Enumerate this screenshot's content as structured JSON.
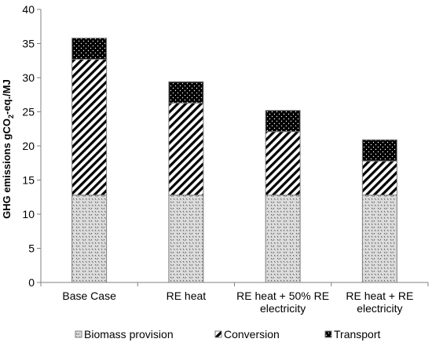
{
  "chart_data": {
    "type": "bar",
    "stacked": true,
    "categories": [
      [
        "Base Case"
      ],
      [
        "RE heat"
      ],
      [
        "RE heat + 50% RE",
        "electricity"
      ],
      [
        "RE heat +  RE",
        "electricity"
      ]
    ],
    "series": [
      {
        "name": "Biomass provision",
        "values": [
          12.8,
          12.8,
          12.8,
          12.8
        ],
        "pattern": "dots-light",
        "color": "#dcdcdc"
      },
      {
        "name": "Conversion",
        "values": [
          19.9,
          13.5,
          9.3,
          5.0
        ],
        "pattern": "diagonal-stripes",
        "color": "#000000"
      },
      {
        "name": "Transport",
        "values": [
          3.1,
          3.1,
          3.1,
          3.1
        ],
        "pattern": "dots-dark",
        "color": "#000000"
      }
    ],
    "ylabel": {
      "prefix": "GHG emissions gCO",
      "sub": "2",
      "suffix": "-eq./MJ"
    },
    "xlabel": "",
    "title": "",
    "ylim": [
      0,
      40
    ],
    "yticks": [
      0,
      5,
      10,
      15,
      20,
      25,
      30,
      35,
      40
    ],
    "grid": false,
    "legend": "bottom"
  }
}
